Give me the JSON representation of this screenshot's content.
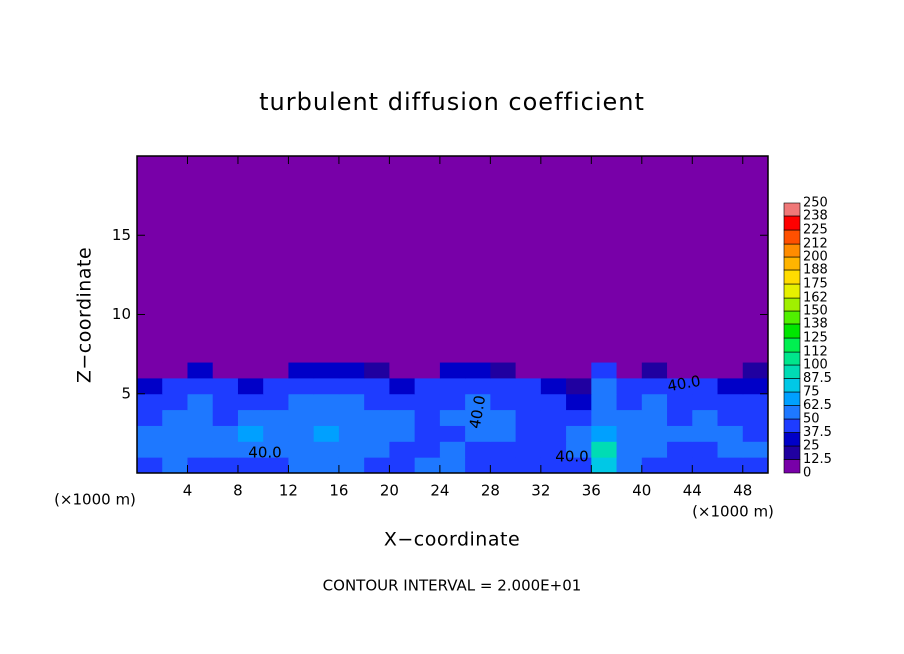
{
  "chart_data": {
    "type": "heatmap",
    "title": "turbulent diffusion coefficient",
    "xlabel": "X−coordinate",
    "ylabel": "Z−coordinate",
    "x_unit": "(×1000 m)",
    "x_unit_right": "(×1000 m)",
    "footer": "CONTOUR INTERVAL = 2.000E+01",
    "xlim": [
      0,
      50
    ],
    "ylim": [
      0,
      20
    ],
    "xticks": [
      4,
      8,
      12,
      16,
      20,
      24,
      28,
      32,
      36,
      40,
      44,
      48
    ],
    "yticks": [
      5,
      10,
      15
    ],
    "x_edges": [
      0,
      2,
      4,
      6,
      8,
      10,
      12,
      14,
      16,
      18,
      20,
      22,
      24,
      26,
      28,
      30,
      32,
      34,
      36,
      38,
      40,
      42,
      44,
      46,
      48,
      50
    ],
    "y_edges": [
      0,
      1,
      2,
      3,
      4,
      5,
      6,
      7,
      20
    ],
    "z": [
      [
        45,
        50,
        45,
        40,
        40,
        45,
        50,
        60,
        55,
        45,
        45,
        50,
        50,
        45,
        40,
        45,
        40,
        40,
        80,
        60,
        45,
        40,
        45,
        40,
        45
      ],
      [
        60,
        55,
        50,
        50,
        55,
        60,
        50,
        60,
        50,
        50,
        45,
        45,
        50,
        40,
        45,
        45,
        40,
        60,
        90,
        50,
        50,
        45,
        45,
        50,
        50
      ],
      [
        55,
        60,
        55,
        50,
        65,
        60,
        55,
        65,
        60,
        55,
        50,
        45,
        45,
        50,
        55,
        45,
        45,
        50,
        70,
        60,
        55,
        50,
        60,
        55,
        45
      ],
      [
        45,
        50,
        55,
        45,
        55,
        50,
        50,
        60,
        55,
        50,
        50,
        45,
        50,
        55,
        50,
        45,
        40,
        40,
        60,
        55,
        55,
        45,
        50,
        45,
        45
      ],
      [
        40,
        45,
        50,
        45,
        45,
        45,
        50,
        55,
        50,
        45,
        45,
        45,
        45,
        50,
        45,
        45,
        40,
        35,
        55,
        45,
        50,
        45,
        45,
        40,
        40
      ],
      [
        30,
        40,
        45,
        40,
        35,
        45,
        45,
        45,
        45,
        40,
        35,
        45,
        45,
        40,
        40,
        40,
        35,
        20,
        50,
        40,
        45,
        40,
        40,
        35,
        30
      ],
      [
        0,
        10,
        30,
        10,
        0,
        10,
        30,
        35,
        30,
        20,
        0,
        5,
        30,
        35,
        15,
        10,
        0,
        0,
        45,
        10,
        20,
        10,
        10,
        0,
        20
      ],
      [
        0,
        0,
        0,
        0,
        0,
        0,
        0,
        0,
        0,
        0,
        0,
        0,
        0,
        0,
        0,
        0,
        0,
        0,
        0,
        0,
        0,
        0,
        0,
        0,
        0
      ]
    ],
    "contour_labels": [
      "40.0",
      "40.0",
      "40.0",
      "40.0"
    ],
    "colorbar": {
      "levels": [
        0,
        12.5,
        25,
        37.5,
        50,
        62.5,
        75,
        87.5,
        100,
        112,
        125,
        138,
        150,
        162,
        175,
        188,
        200,
        212,
        225,
        238,
        250
      ],
      "colors": [
        "#7800a8",
        "#2000a0",
        "#0000c8",
        "#1e3cff",
        "#1e78ff",
        "#00a0ff",
        "#00c8e6",
        "#00dcb4",
        "#00e68c",
        "#00f050",
        "#00e600",
        "#50f000",
        "#a0f000",
        "#e6f000",
        "#ffdc00",
        "#ffb400",
        "#ff8c00",
        "#ff5000",
        "#ff0000",
        "#f07878"
      ]
    }
  }
}
